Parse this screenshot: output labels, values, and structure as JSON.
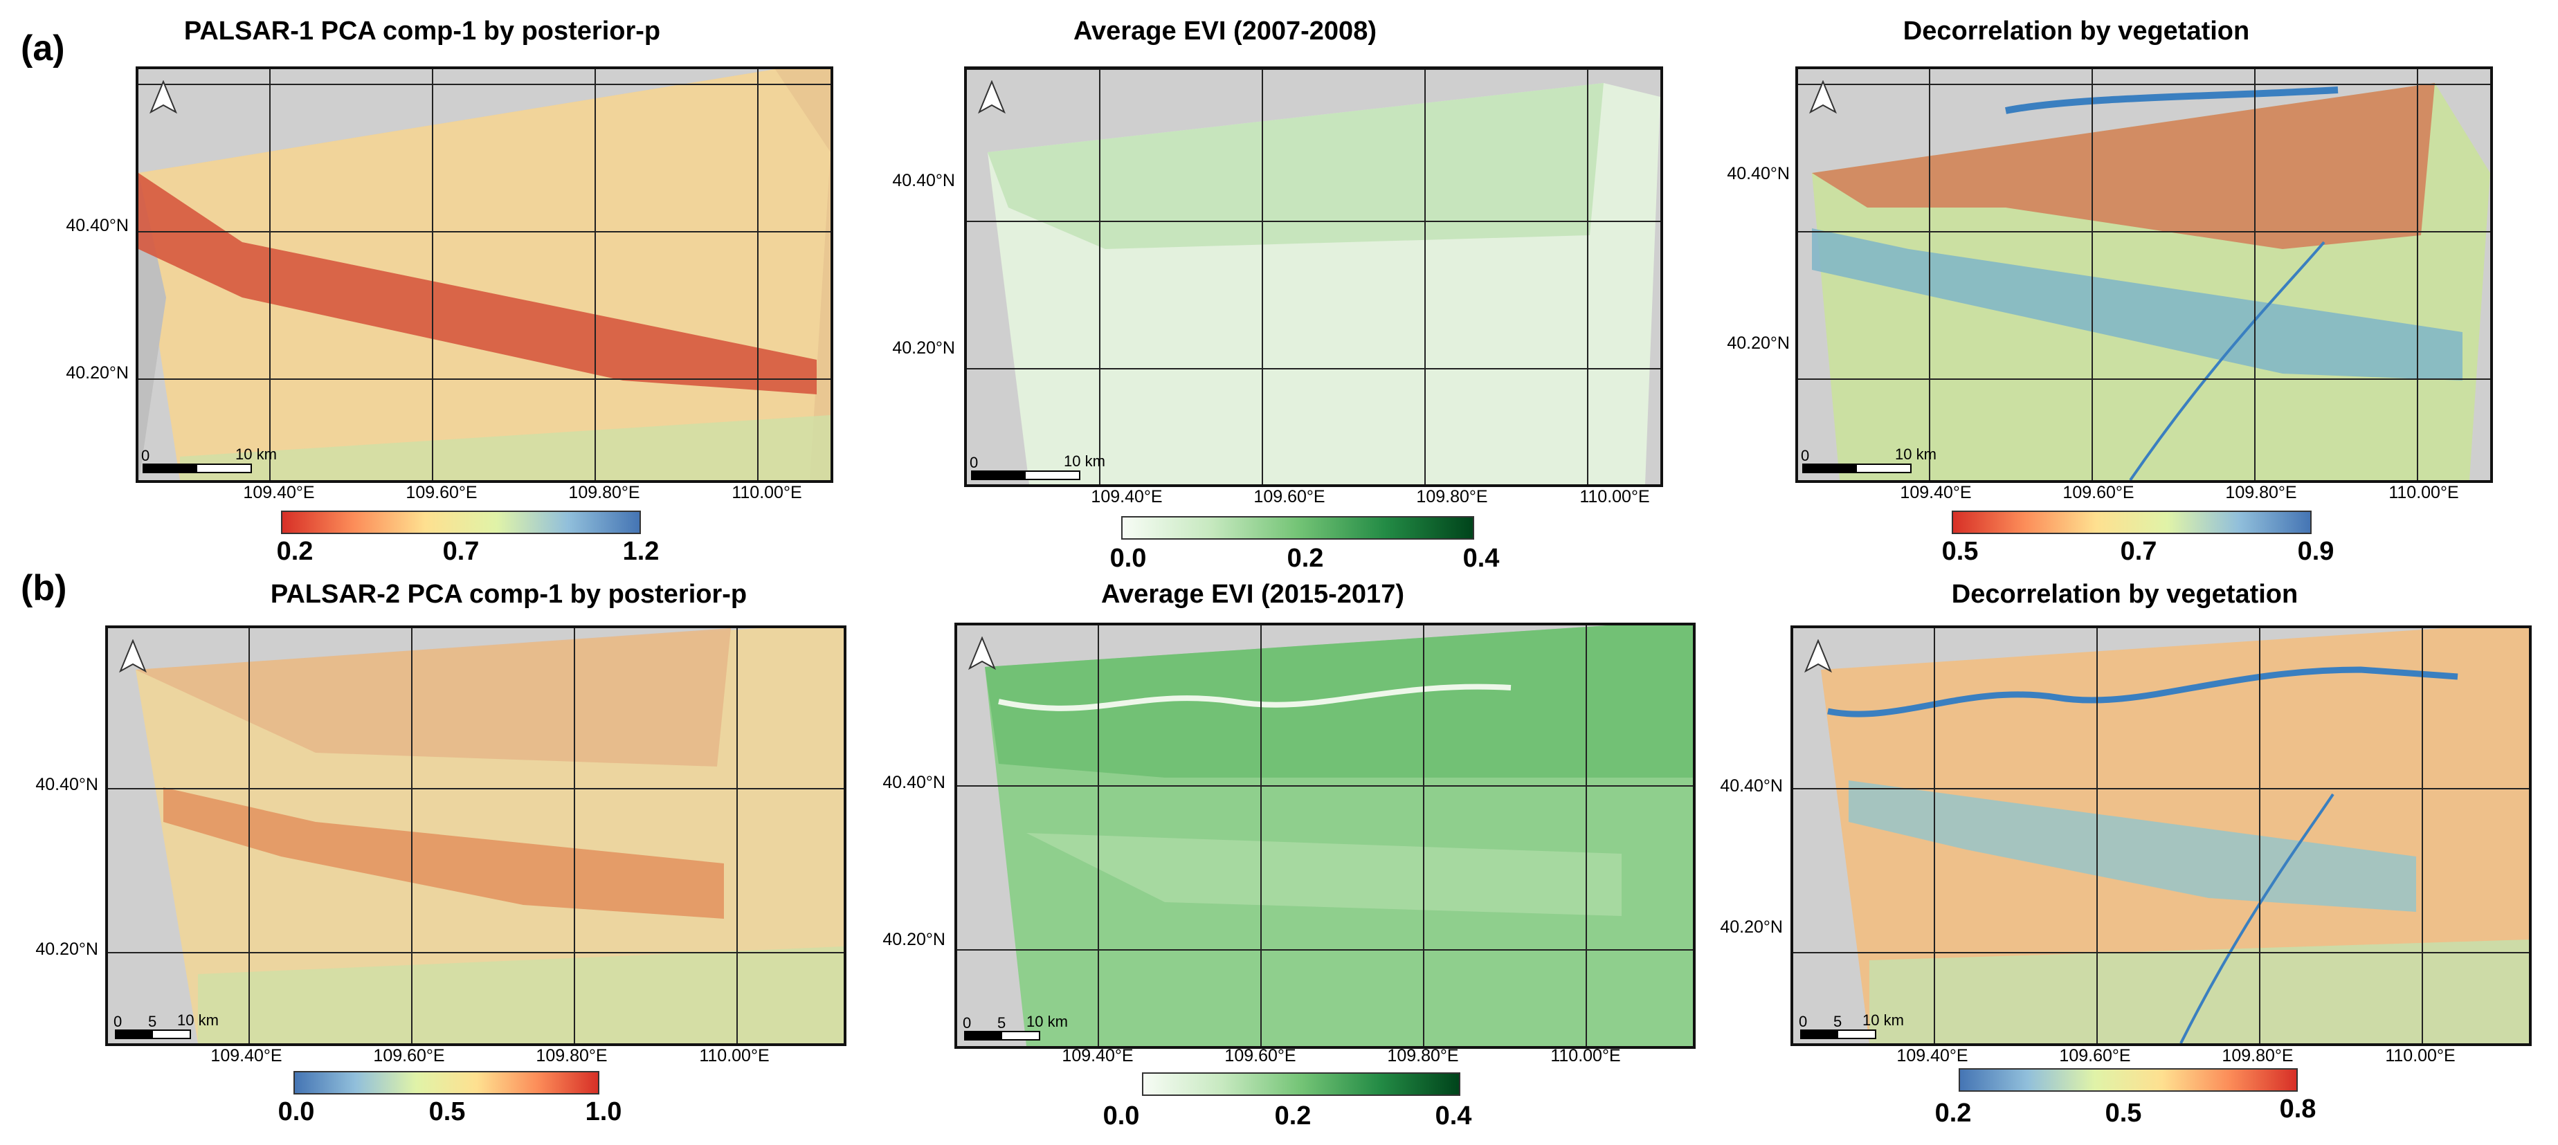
{
  "figure": {
    "row_a_label": "(a)",
    "row_b_label": "(b)",
    "panels": [
      {
        "id": "a1",
        "title": "PALSAR-1  PCA  comp-1  by  posterior-p",
        "lat_labels": [
          "40.40°N",
          "40.20°N"
        ],
        "lon_labels": [
          "109.40°E",
          "109.60°E",
          "109.80°E",
          "110.00°E"
        ],
        "scalebar": {
          "origin": "0",
          "distance": "10 km"
        },
        "colorbar": {
          "ticks": [
            "0.2",
            "0.7",
            "1.2"
          ],
          "colors": [
            "#d73027",
            "#fc8d59",
            "#fee090",
            "#e0f3a8",
            "#91bfdb",
            "#4575b4"
          ]
        }
      },
      {
        "id": "a2",
        "title": "Average EVI (2007-2008)",
        "lat_labels": [
          "40.40°N",
          "40.20°N"
        ],
        "lon_labels": [
          "109.40°E",
          "109.60°E",
          "109.80°E",
          "110.00°E"
        ],
        "scalebar": {
          "origin": "0",
          "distance": "10 km"
        },
        "colorbar": {
          "ticks": [
            "0.0",
            "0.2",
            "0.4"
          ],
          "colors": [
            "#f7fcf5",
            "#c7e9c0",
            "#74c476",
            "#238b45",
            "#00441b"
          ]
        }
      },
      {
        "id": "a3",
        "title": "Decorrelation by vegetation",
        "lat_labels": [
          "40.40°N",
          "40.20°N"
        ],
        "lon_labels": [
          "109.40°E",
          "109.60°E",
          "109.80°E",
          "110.00°E"
        ],
        "scalebar": {
          "origin": "0",
          "distance": "10 km"
        },
        "colorbar": {
          "ticks": [
            "0.5",
            "0.7",
            "0.9"
          ],
          "colors": [
            "#d73027",
            "#fc8d59",
            "#fee090",
            "#e0f3a8",
            "#91bfdb",
            "#4575b4"
          ]
        }
      },
      {
        "id": "b1",
        "title": "PALSAR-2  PCA  comp-1  by  posterior-p",
        "lat_labels": [
          "40.40°N",
          "40.20°N"
        ],
        "lon_labels": [
          "109.40°E",
          "109.60°E",
          "109.80°E",
          "110.00°E"
        ],
        "scalebar": {
          "origin": "0",
          "mid": "5",
          "distance": "10 km"
        },
        "colorbar": {
          "ticks": [
            "0.0",
            "0.5",
            "1.0"
          ],
          "colors": [
            "#4575b4",
            "#91bfdb",
            "#e0f3a8",
            "#fee090",
            "#fc8d59",
            "#d73027"
          ]
        }
      },
      {
        "id": "b2",
        "title": "Average EVI (2015-2017)",
        "lat_labels": [
          "40.40°N",
          "40.20°N"
        ],
        "lon_labels": [
          "109.40°E",
          "109.60°E",
          "109.80°E",
          "110.00°E"
        ],
        "scalebar": {
          "origin": "0",
          "mid": "5",
          "distance": "10 km"
        },
        "colorbar": {
          "ticks": [
            "0.0",
            "0.2",
            "0.4"
          ],
          "colors": [
            "#f7fcf5",
            "#c7e9c0",
            "#74c476",
            "#238b45",
            "#00441b"
          ]
        }
      },
      {
        "id": "b3",
        "title": "Decorrelation by vegetation",
        "lat_labels": [
          "40.40°N",
          "40.20°N"
        ],
        "lon_labels": [
          "109.40°E",
          "109.60°E",
          "109.80°E",
          "110.00°E"
        ],
        "scalebar": {
          "origin": "0",
          "mid": "5",
          "distance": "10 km"
        },
        "colorbar": {
          "ticks": [
            "0.2",
            "0.5",
            "0.8"
          ],
          "colors": [
            "#4575b4",
            "#91bfdb",
            "#e0f3a8",
            "#fee090",
            "#fc8d59",
            "#d73027"
          ]
        }
      }
    ]
  },
  "colors": {
    "hillshade": "#c9c9c9",
    "grid": "#222222",
    "p1_base": "#f2c98c",
    "p1_band": "#d85a3e",
    "evi1_base": "#dcefd6",
    "decor1_base": "#c8dea0",
    "decor1_band": "#7fb5c8",
    "decor1_hot": "#d9472f",
    "p2_base": "#e7c48f",
    "p2_band": "#e3925e",
    "evi2_base": "#8fcf8d",
    "evi2_dark": "#3a9a4f",
    "decor2_base": "#eec08a",
    "decor2_band": "#9cc4c4",
    "decor2_river": "#3a7fc0"
  }
}
